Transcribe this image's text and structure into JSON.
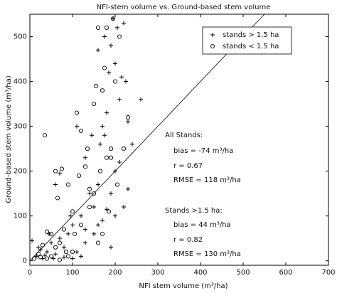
{
  "chart_data": {
    "type": "scatter",
    "title": "NFI-stem volume vs. Ground-based stem volume",
    "x_label": "NFI stem volume (m³/ha)",
    "y_label": "Ground-based stem volume (m³/ha)",
    "xlim": [
      0,
      700
    ],
    "ylim": [
      -10,
      550
    ],
    "xticks": [
      0,
      100,
      200,
      300,
      400,
      500,
      600,
      700
    ],
    "yticks": [
      0,
      100,
      200,
      300,
      400,
      500
    ],
    "identity_line": true,
    "legend": "upper right",
    "annotations": [
      "All Stands:",
      "bias = -74 m³/ha",
      "r = 0.67",
      "RMSE = 118 m³/ha",
      "Stands >1.5 ha:",
      "bias = 44 m³/ha",
      "r = 0.82",
      "RMSE = 130 m³/ha"
    ],
    "series": [
      {
        "name": "stands > 1.5 ha",
        "marker": "+",
        "color": "#000000",
        "x": [
          5,
          15,
          20,
          30,
          40,
          50,
          60,
          70,
          80,
          90,
          100,
          110,
          120,
          130,
          140,
          150,
          160,
          165,
          170,
          175,
          180,
          185,
          190,
          195,
          200,
          205,
          210,
          215,
          220,
          225,
          230,
          240,
          260,
          170,
          180,
          190,
          200,
          210,
          150,
          130,
          120,
          100,
          80,
          60,
          70,
          110,
          130,
          145,
          160,
          175,
          200,
          190,
          220,
          230,
          160,
          55,
          35,
          25,
          45,
          95
        ],
        "y": [
          45,
          10,
          30,
          5,
          20,
          40,
          15,
          50,
          30,
          60,
          80,
          20,
          100,
          70,
          150,
          120,
          170,
          260,
          300,
          280,
          330,
          420,
          480,
          540,
          440,
          520,
          360,
          410,
          530,
          400,
          310,
          260,
          360,
          90,
          115,
          150,
          200,
          220,
          60,
          40,
          10,
          5,
          8,
          170,
          195,
          300,
          230,
          280,
          470,
          500,
          100,
          30,
          120,
          160,
          80,
          5,
          12,
          25,
          60,
          100
        ]
      },
      {
        "name": "stands < 1.5 ha",
        "marker": "o",
        "color": "#000000",
        "x": [
          10,
          20,
          30,
          40,
          50,
          60,
          65,
          70,
          75,
          85,
          90,
          100,
          105,
          115,
          120,
          130,
          135,
          140,
          150,
          155,
          160,
          165,
          170,
          175,
          180,
          185,
          190,
          195,
          200,
          205,
          210,
          220,
          230,
          160,
          170,
          150,
          120,
          100,
          80,
          50,
          40,
          35,
          110,
          140,
          190,
          180,
          90,
          70,
          25,
          60
        ],
        "y": [
          5,
          15,
          35,
          65,
          10,
          200,
          140,
          40,
          205,
          20,
          170,
          110,
          60,
          190,
          290,
          210,
          250,
          160,
          350,
          390,
          520,
          200,
          380,
          430,
          230,
          110,
          250,
          540,
          400,
          170,
          500,
          250,
          320,
          40,
          60,
          150,
          80,
          20,
          70,
          60,
          5,
          280,
          330,
          120,
          230,
          520,
          10,
          2,
          8,
          30
        ]
      }
    ]
  }
}
